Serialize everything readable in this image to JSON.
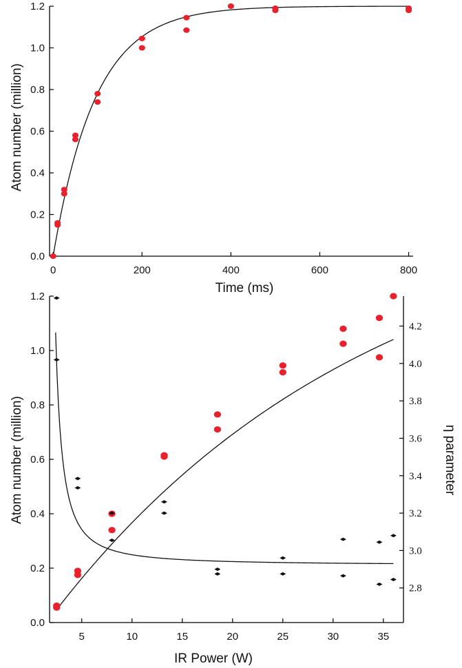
{
  "chart_data": [
    {
      "type": "scatter",
      "title": "",
      "xlabel": "Time (ms)",
      "ylabel": "Atom number (million)",
      "xlim": [
        -8,
        810
      ],
      "ylim": [
        0,
        1.2
      ],
      "xticks": [
        0,
        200,
        400,
        600,
        800
      ],
      "yticks": [
        0.0,
        0.2,
        0.4,
        0.6,
        0.8,
        1.0,
        1.2
      ],
      "xtick_labels": [
        "0",
        "200",
        "400",
        "600",
        "800"
      ],
      "ytick_labels": [
        "0.0",
        "0.2",
        "0.4",
        "0.6",
        "0.8",
        "1.0",
        "1.2"
      ],
      "grid": false,
      "series": [
        {
          "color": "#e8222c",
          "marker": "circle",
          "x": [
            0,
            10,
            10,
            25,
            25,
            50,
            50,
            100,
            100,
            200,
            200,
            300,
            300,
            400,
            500,
            500,
            800,
            800
          ],
          "y": [
            0.0,
            0.15,
            0.16,
            0.3,
            0.32,
            0.56,
            0.58,
            0.74,
            0.78,
            1.0,
            1.045,
            1.085,
            1.145,
            1.2,
            1.18,
            1.19,
            1.18,
            1.19
          ]
        }
      ],
      "fit": {
        "type": "exponential-saturation",
        "color": "#111111",
        "amplitude": 1.2,
        "tau_ms": 95
      }
    },
    {
      "type": "scatter",
      "title": "",
      "xlabel": "IR Power (W)",
      "ylabel": "Atom number (million)",
      "y2label": "η parameter",
      "xlim": [
        1.8,
        37
      ],
      "ylim": [
        0,
        1.2
      ],
      "y2lim": [
        2.615,
        4.36
      ],
      "xticks": [
        5,
        10,
        15,
        20,
        25,
        30,
        35
      ],
      "yticks": [
        0.0,
        0.2,
        0.4,
        0.6,
        0.8,
        1.0,
        1.2
      ],
      "y2ticks": [
        2.8,
        3.0,
        3.2,
        3.4,
        3.6,
        3.8,
        4.0,
        4.2
      ],
      "xtick_labels": [
        "5",
        "10",
        "15",
        "20",
        "25",
        "30",
        "35"
      ],
      "ytick_labels": [
        "0.0",
        "0.2",
        "0.4",
        "0.6",
        "0.8",
        "1.0",
        "1.2"
      ],
      "y2tick_labels": [
        "2.8",
        "3.0",
        "3.2",
        "3.4",
        "3.6",
        "3.8",
        "4.0",
        "4.2"
      ],
      "grid": false,
      "series": [
        {
          "axis": "left",
          "color": "#e8222c",
          "marker": "circle",
          "x": [
            2.5,
            2.5,
            4.6,
            4.6,
            8.0,
            8.0,
            13.2,
            13.2,
            18.5,
            18.5,
            25.0,
            25.0,
            31.0,
            31.0,
            34.6,
            34.6,
            36.0
          ],
          "y": [
            0.055,
            0.062,
            0.175,
            0.19,
            0.34,
            0.4,
            0.61,
            0.615,
            0.71,
            0.765,
            0.92,
            0.945,
            1.025,
            1.08,
            0.975,
            1.12,
            1.2
          ]
        },
        {
          "axis": "right",
          "color": "#111111",
          "marker": "diamond",
          "x": [
            2.5,
            2.5,
            4.6,
            4.6,
            8.0,
            8.0,
            13.2,
            13.2,
            18.5,
            18.5,
            25.0,
            25.0,
            31.0,
            31.0,
            34.6,
            34.6,
            36.0,
            36.0
          ],
          "y": [
            4.35,
            4.02,
            3.385,
            3.335,
            3.2,
            3.055,
            3.26,
            3.2,
            2.9,
            2.875,
            2.96,
            2.875,
            3.06,
            2.865,
            3.045,
            2.82,
            3.08,
            2.845
          ]
        }
      ],
      "fits": [
        {
          "axis": "left",
          "type": "sqrt-like",
          "color": "#111111"
        },
        {
          "axis": "right",
          "type": "decay",
          "color": "#111111"
        }
      ]
    }
  ]
}
